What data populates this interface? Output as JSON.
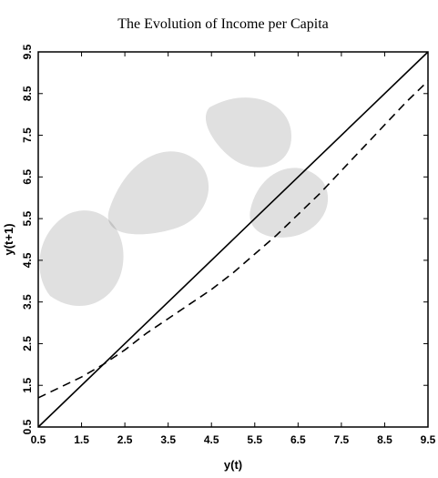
{
  "chart_data": {
    "type": "line",
    "title": "The Evolution of Income per Capita",
    "xlabel": "y(t)",
    "ylabel": "y(t+1)",
    "xlim": [
      0.5,
      9.5
    ],
    "ylim": [
      0.5,
      9.5
    ],
    "x_ticks": [
      "0.5",
      "1.5",
      "2.5",
      "3.5",
      "4.5",
      "5.5",
      "6.5",
      "7.5",
      "8.5",
      "9.5"
    ],
    "y_ticks": [
      "0.5",
      "1.5",
      "2.5",
      "3.5",
      "4.5",
      "5.5",
      "6.5",
      "7.5",
      "8.5",
      "9.5"
    ],
    "grid": false,
    "series": [
      {
        "style": "solid",
        "color": "#000000",
        "x": [
          0.5,
          9.5
        ],
        "y": [
          0.5,
          9.5
        ]
      },
      {
        "style": "dashed",
        "color": "#000000",
        "x": [
          0.5,
          1.0,
          1.5,
          2.0,
          2.5,
          3.0,
          3.5,
          4.0,
          4.5,
          5.0,
          5.5,
          6.0,
          6.5,
          7.0,
          7.5,
          8.0,
          8.5,
          9.0,
          9.5
        ],
        "y": [
          1.2,
          1.45,
          1.7,
          2.0,
          2.35,
          2.75,
          3.1,
          3.45,
          3.8,
          4.2,
          4.65,
          5.1,
          5.6,
          6.1,
          6.65,
          7.2,
          7.75,
          8.3,
          8.8
        ]
      }
    ]
  }
}
